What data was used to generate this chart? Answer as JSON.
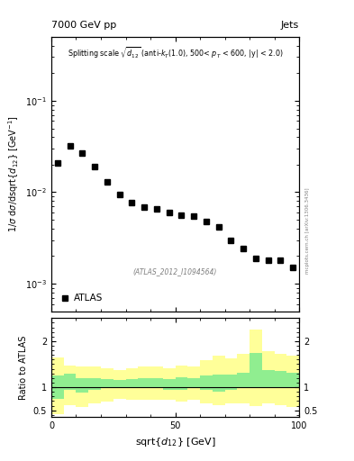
{
  "title_left": "7000 GeV pp",
  "title_right": "Jets",
  "watermark": "(ATLAS_2012_I1094564)",
  "arxiv_text": "mcplots.cern.ch [arXiv:1306.3436]",
  "ylabel_main": "1/σ dσ/dsqrt(d_{12}) [GeV⁻¹]",
  "ylabel_ratio": "Ratio to ATLAS",
  "xlabel": "sqrt(d_{12}) [GeV]",
  "xlim": [
    0,
    100
  ],
  "ylim_main": [
    0.0005,
    0.5
  ],
  "ylim_ratio": [
    0.35,
    2.5
  ],
  "data_x": [
    2.5,
    7.5,
    12.5,
    17.5,
    22.5,
    27.5,
    32.5,
    37.5,
    42.5,
    47.5,
    52.5,
    57.5,
    62.5,
    67.5,
    72.5,
    77.5,
    82.5,
    87.5,
    92.5,
    97.5
  ],
  "data_y": [
    0.021,
    0.032,
    0.027,
    0.019,
    0.013,
    0.0095,
    0.0077,
    0.0068,
    0.0065,
    0.006,
    0.0056,
    0.0055,
    0.0048,
    0.0042,
    0.003,
    0.0024,
    0.0019,
    0.0018,
    0.0018,
    0.0015
  ],
  "ratio_bin_edges": [
    0,
    5,
    10,
    15,
    20,
    25,
    30,
    35,
    40,
    45,
    50,
    55,
    60,
    65,
    70,
    75,
    80,
    85,
    90,
    95,
    100
  ],
  "ratio_green_low": [
    0.75,
    0.95,
    0.88,
    0.95,
    0.98,
    1.0,
    1.0,
    1.0,
    1.0,
    0.95,
    0.95,
    1.0,
    0.95,
    0.9,
    0.95,
    1.0,
    0.98,
    1.0,
    1.0,
    1.0
  ],
  "ratio_green_high": [
    1.25,
    1.3,
    1.2,
    1.2,
    1.18,
    1.15,
    1.18,
    1.2,
    1.2,
    1.18,
    1.22,
    1.2,
    1.25,
    1.28,
    1.28,
    1.32,
    1.75,
    1.38,
    1.35,
    1.32
  ],
  "ratio_yellow_low": [
    0.42,
    0.62,
    0.58,
    0.65,
    0.68,
    0.75,
    0.72,
    0.72,
    0.72,
    0.72,
    0.68,
    0.72,
    0.65,
    0.62,
    0.65,
    0.65,
    0.6,
    0.65,
    0.62,
    0.58
  ],
  "ratio_yellow_high": [
    1.65,
    1.48,
    1.45,
    1.45,
    1.42,
    1.38,
    1.42,
    1.45,
    1.45,
    1.42,
    1.48,
    1.45,
    1.58,
    1.68,
    1.62,
    1.72,
    2.25,
    1.78,
    1.72,
    1.68
  ],
  "marker_color": "black",
  "marker_style": "s",
  "marker_size": 4,
  "legend_label": "ATLAS",
  "background_color": "white",
  "green_color": "#90EE90",
  "yellow_color": "#FFFF99"
}
